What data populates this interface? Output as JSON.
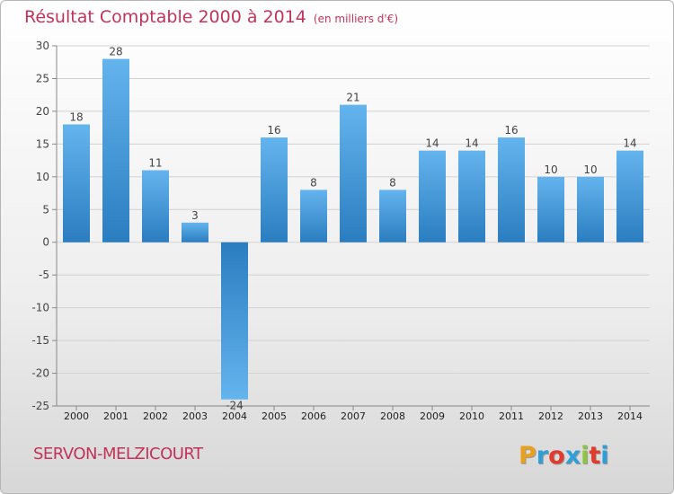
{
  "title": "Résultat Comptable 2000 à 2014",
  "unit_note": "(en milliers d'€)",
  "commune": "SERVON-MELZICOURT",
  "logo": {
    "text": "Proxiti",
    "letters": [
      "P",
      "r",
      "o",
      "x",
      "i",
      "t",
      "i"
    ],
    "colors": [
      "#e8a020",
      "#2f9fd8",
      "#e03b2c",
      "#2f9fd8",
      "#8cc63e",
      "#e03b2c",
      "#2f9fd8"
    ]
  },
  "colors": {
    "bar_light": "#64b4ee",
    "bar_dark": "#2a7dbf",
    "grid": "#d2d2d2",
    "axis": "#888888",
    "label": "#444444",
    "title": "#c0335a"
  },
  "chart_data": {
    "type": "bar",
    "title": "Résultat Comptable 2000 à 2014",
    "subtitle": "(en milliers d'€)",
    "xlabel": "",
    "ylabel": "",
    "categories": [
      "2000",
      "2001",
      "2002",
      "2003",
      "2004",
      "2005",
      "2006",
      "2007",
      "2008",
      "2009",
      "2010",
      "2011",
      "2012",
      "2013",
      "2014"
    ],
    "values": [
      18,
      28,
      11,
      3,
      -24,
      16,
      8,
      21,
      8,
      14,
      14,
      16,
      10,
      10,
      14
    ],
    "ylim": [
      -25,
      30
    ],
    "yticks": [
      30,
      25,
      20,
      15,
      10,
      5,
      0,
      -5,
      -10,
      -15,
      -20,
      -25
    ],
    "grid": true,
    "legend": "none"
  }
}
